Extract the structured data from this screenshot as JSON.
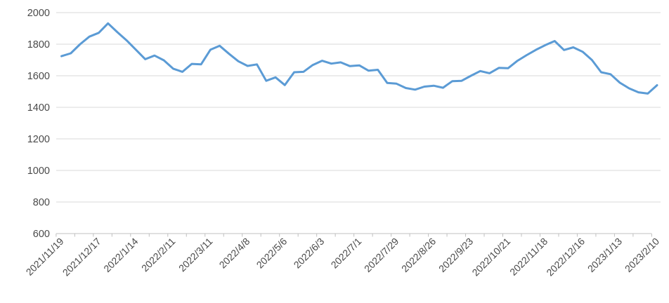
{
  "chart_data": {
    "type": "line",
    "title": "",
    "xlabel": "",
    "ylabel": "",
    "ylim": [
      600,
      2000
    ],
    "ytick_step": 200,
    "ytick_labels": [
      "2000",
      "1800",
      "1600",
      "1400",
      "1200",
      "1000",
      "800",
      "600"
    ],
    "grid": "horizontal",
    "legend": "none",
    "x_label_every": 4,
    "x": [
      "2021/11/19",
      "2021/11/26",
      "2021/12/3",
      "2021/12/10",
      "2021/12/17",
      "2021/12/24",
      "2021/12/31",
      "2022/1/7",
      "2022/1/14",
      "2022/1/21",
      "2022/1/28",
      "2022/2/4",
      "2022/2/11",
      "2022/2/18",
      "2022/2/25",
      "2022/3/4",
      "2022/3/11",
      "2022/3/18",
      "2022/3/25",
      "2022/4/1",
      "2022/4/8",
      "2022/4/15",
      "2022/4/22",
      "2022/4/29",
      "2022/5/6",
      "2022/5/13",
      "2022/5/20",
      "2022/5/27",
      "2022/6/3",
      "2022/6/10",
      "2022/6/17",
      "2022/6/24",
      "2022/7/1",
      "2022/7/8",
      "2022/7/15",
      "2022/7/22",
      "2022/7/29",
      "2022/8/5",
      "2022/8/12",
      "2022/8/19",
      "2022/8/26",
      "2022/9/2",
      "2022/9/9",
      "2022/9/16",
      "2022/9/23",
      "2022/9/30",
      "2022/10/7",
      "2022/10/14",
      "2022/10/21",
      "2022/10/28",
      "2022/11/4",
      "2022/11/11",
      "2022/11/18",
      "2022/11/25",
      "2022/12/2",
      "2022/12/9",
      "2022/12/16",
      "2022/12/23",
      "2022/12/30",
      "2023/1/6",
      "2023/1/13",
      "2023/1/20",
      "2023/1/27",
      "2023/2/3",
      "2023/2/10"
    ],
    "visible_x_labels": [
      "2021/11/19",
      "2021/12/17",
      "2022/1/14",
      "2022/2/11",
      "2022/3/11",
      "2022/4/8",
      "2022/5/6",
      "2022/6/3",
      "2022/7/1",
      "2022/7/29",
      "2022/8/26",
      "2022/9/23",
      "2022/10/21",
      "2022/11/18",
      "2022/12/16",
      "2023/1/13",
      "2023/2/10"
    ],
    "values": [
      1724,
      1742,
      1800,
      1848,
      1872,
      1932,
      1876,
      1824,
      1765,
      1705,
      1728,
      1698,
      1645,
      1625,
      1675,
      1672,
      1765,
      1790,
      1739,
      1692,
      1662,
      1672,
      1568,
      1590,
      1541,
      1622,
      1625,
      1668,
      1695,
      1677,
      1685,
      1661,
      1666,
      1632,
      1638,
      1554,
      1550,
      1522,
      1512,
      1531,
      1537,
      1524,
      1566,
      1568,
      1600,
      1630,
      1616,
      1650,
      1648,
      1695,
      1731,
      1765,
      1794,
      1820,
      1763,
      1780,
      1752,
      1700,
      1622,
      1610,
      1556,
      1520,
      1495,
      1487,
      1540
    ],
    "colors": {
      "series": "#5B9BD5",
      "gridline": "#D9D9D9",
      "axis": "#C0C0C0",
      "label": "#4a4a4a"
    },
    "series_stroke_width": 3
  }
}
